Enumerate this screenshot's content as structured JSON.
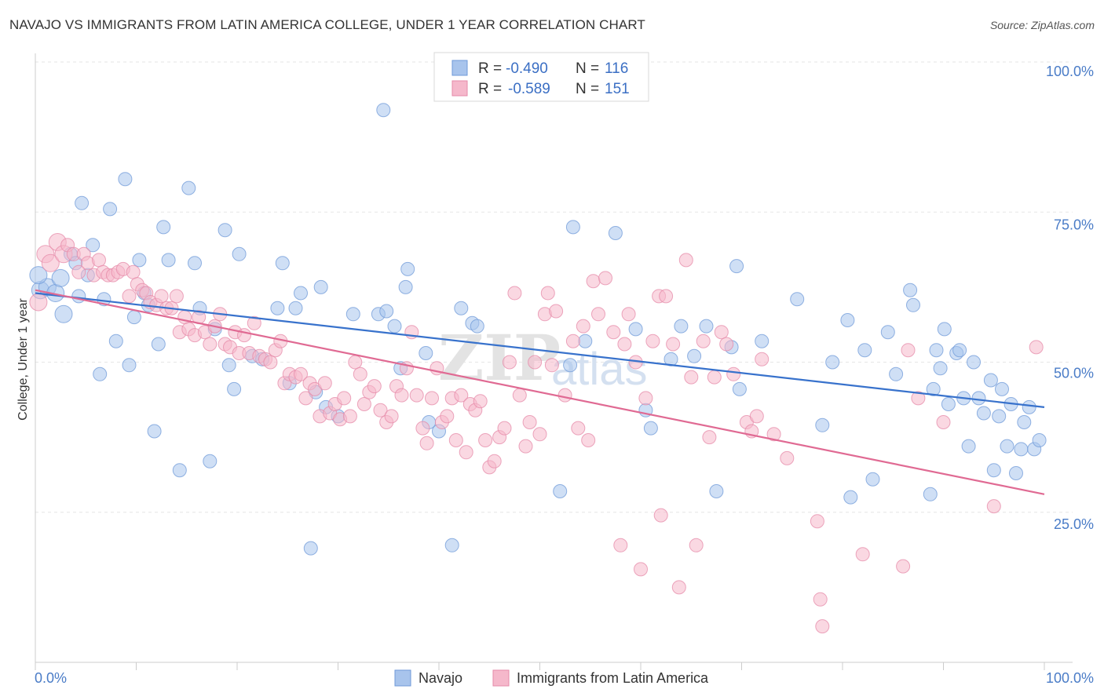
{
  "title": "NAVAJO VS IMMIGRANTS FROM LATIN AMERICA COLLEGE, UNDER 1 YEAR CORRELATION CHART",
  "source": "Source: ZipAtlas.com",
  "watermark": {
    "zip": "ZIP",
    "atlas": "atlas"
  },
  "legend": {
    "r_label": "R =",
    "n_label": "N =",
    "series": [
      {
        "r": "-0.490",
        "n": "116",
        "color": "#a8c4ec",
        "stroke": "#6f9ad8"
      },
      {
        "r": "-0.589",
        "n": "151",
        "color": "#f5b8cb",
        "stroke": "#e58aa8"
      }
    ]
  },
  "chart_data": {
    "type": "scatter",
    "title": "NAVAJO VS IMMIGRANTS FROM LATIN AMERICA COLLEGE, UNDER 1 YEAR CORRELATION CHART",
    "xlabel": "",
    "ylabel": "College, Under 1 year",
    "xlim": [
      0,
      100
    ],
    "ylim": [
      0,
      100
    ],
    "x_tick_labels": [
      "0.0%",
      "100.0%"
    ],
    "y_tick_labels": [
      {
        "value": 100,
        "label": "100.0%"
      },
      {
        "value": 75,
        "label": "75.0%"
      },
      {
        "value": 50,
        "label": "50.0%"
      },
      {
        "value": 25,
        "label": "25.0%"
      }
    ],
    "grid": true,
    "legend_position": "top-center",
    "series": [
      {
        "name": "Navajo",
        "color": "#a8c4ec",
        "stroke": "#6f9ad8",
        "line_color": "#3872cc",
        "trend": {
          "x": [
            0,
            100
          ],
          "y": [
            61.5,
            42.5
          ]
        },
        "points": [
          [
            0.5,
            62
          ],
          [
            1.2,
            62.5
          ],
          [
            2,
            61.5
          ],
          [
            2.5,
            64
          ],
          [
            2.8,
            58
          ],
          [
            3.5,
            68
          ],
          [
            4,
            66.5
          ],
          [
            4.3,
            61
          ],
          [
            4.6,
            76.5
          ],
          [
            5.2,
            64.5
          ],
          [
            5.7,
            69.5
          ],
          [
            6.4,
            48
          ],
          [
            6.8,
            60.5
          ],
          [
            7.4,
            75.5
          ],
          [
            8,
            53.5
          ],
          [
            8.9,
            80.5
          ],
          [
            9.3,
            49.5
          ],
          [
            9.8,
            57.5
          ],
          [
            10.3,
            67
          ],
          [
            10.8,
            61.5
          ],
          [
            11.2,
            59.5
          ],
          [
            11.8,
            38.5
          ],
          [
            12.2,
            53
          ],
          [
            12.7,
            72.5
          ],
          [
            13.2,
            67
          ],
          [
            14.3,
            32
          ],
          [
            15.2,
            79
          ],
          [
            15.8,
            66.5
          ],
          [
            16.3,
            59
          ],
          [
            17.3,
            33.5
          ],
          [
            17.8,
            55.5
          ],
          [
            18.8,
            72
          ],
          [
            19.2,
            49.5
          ],
          [
            19.7,
            45.5
          ],
          [
            20.2,
            68
          ],
          [
            21.5,
            51
          ],
          [
            22.5,
            50.5
          ],
          [
            24,
            59
          ],
          [
            24.5,
            66.5
          ],
          [
            25.2,
            46.5
          ],
          [
            25.8,
            59
          ],
          [
            26.3,
            61.5
          ],
          [
            27.3,
            19
          ],
          [
            27.8,
            45
          ],
          [
            28.3,
            62.5
          ],
          [
            28.8,
            42.5
          ],
          [
            30,
            41
          ],
          [
            31.5,
            58
          ],
          [
            34,
            58
          ],
          [
            34.5,
            92
          ],
          [
            34.8,
            58.5
          ],
          [
            35.6,
            56
          ],
          [
            36.2,
            49
          ],
          [
            36.7,
            62.5
          ],
          [
            36.9,
            65.5
          ],
          [
            38.7,
            51.5
          ],
          [
            39,
            40
          ],
          [
            40,
            38.5
          ],
          [
            41.3,
            19.5
          ],
          [
            42.2,
            59
          ],
          [
            43.3,
            56.5
          ],
          [
            43.8,
            56
          ],
          [
            52,
            28.5
          ],
          [
            53,
            49.5
          ],
          [
            53.3,
            72.5
          ],
          [
            54.5,
            53.5
          ],
          [
            57.5,
            71.5
          ],
          [
            59.5,
            55.5
          ],
          [
            60.5,
            42
          ],
          [
            61,
            39
          ],
          [
            63,
            50.5
          ],
          [
            64,
            56
          ],
          [
            65.3,
            51
          ],
          [
            66.5,
            56
          ],
          [
            67.5,
            28.5
          ],
          [
            69,
            52.5
          ],
          [
            69.8,
            45.5
          ],
          [
            69.5,
            66
          ],
          [
            72,
            53.5
          ],
          [
            75.5,
            60.5
          ],
          [
            78,
            39.5
          ],
          [
            79,
            50
          ],
          [
            80.5,
            57
          ],
          [
            80.8,
            27.5
          ],
          [
            82.2,
            52
          ],
          [
            83,
            30.5
          ],
          [
            84.5,
            55
          ],
          [
            85.3,
            48
          ],
          [
            86.7,
            62
          ],
          [
            87,
            59.5
          ],
          [
            88.7,
            28
          ],
          [
            89,
            45.5
          ],
          [
            89.3,
            52
          ],
          [
            89.7,
            49
          ],
          [
            90.1,
            55.5
          ],
          [
            90.5,
            43
          ],
          [
            91.3,
            51.5
          ],
          [
            91.6,
            52
          ],
          [
            92,
            44
          ],
          [
            92.5,
            36
          ],
          [
            93,
            50
          ],
          [
            93.5,
            44
          ],
          [
            94,
            41.5
          ],
          [
            94.7,
            47
          ],
          [
            95,
            32
          ],
          [
            95.5,
            41
          ],
          [
            95.8,
            45.5
          ],
          [
            96.3,
            36
          ],
          [
            96.7,
            43
          ],
          [
            97.2,
            31.5
          ],
          [
            97.7,
            35.5
          ],
          [
            98,
            40
          ],
          [
            98.5,
            42.5
          ],
          [
            99,
            35.5
          ],
          [
            99.5,
            37
          ],
          [
            0.3,
            64.5
          ]
        ]
      },
      {
        "name": "Immigrants from Latin America",
        "color": "#f5b8cb",
        "stroke": "#e58aa8",
        "line_color": "#e06a93",
        "trend": {
          "x": [
            0,
            100
          ],
          "y": [
            62,
            28
          ]
        },
        "points": [
          [
            0.3,
            60
          ],
          [
            1,
            68
          ],
          [
            1.5,
            66.5
          ],
          [
            2.2,
            70
          ],
          [
            2.8,
            68
          ],
          [
            3.2,
            69.5
          ],
          [
            3.8,
            68
          ],
          [
            4.3,
            65
          ],
          [
            4.8,
            68
          ],
          [
            5.2,
            66.5
          ],
          [
            5.8,
            64.5
          ],
          [
            6.3,
            67
          ],
          [
            6.7,
            65
          ],
          [
            7.2,
            64.5
          ],
          [
            7.7,
            64.5
          ],
          [
            8.2,
            65
          ],
          [
            8.7,
            65.5
          ],
          [
            9.3,
            61
          ],
          [
            9.7,
            65
          ],
          [
            10.1,
            63
          ],
          [
            10.6,
            62
          ],
          [
            11,
            61.5
          ],
          [
            11.4,
            60
          ],
          [
            12,
            59.5
          ],
          [
            12.5,
            61
          ],
          [
            13,
            59
          ],
          [
            13.5,
            59
          ],
          [
            14,
            61
          ],
          [
            14.3,
            55
          ],
          [
            14.8,
            57.5
          ],
          [
            15.2,
            55.5
          ],
          [
            15.8,
            54.5
          ],
          [
            16.2,
            57.5
          ],
          [
            16.8,
            55
          ],
          [
            17.3,
            53
          ],
          [
            17.8,
            56
          ],
          [
            18.3,
            58
          ],
          [
            18.8,
            53
          ],
          [
            19.3,
            52.5
          ],
          [
            19.8,
            55
          ],
          [
            20.2,
            51.5
          ],
          [
            20.7,
            54.5
          ],
          [
            21.2,
            51.5
          ],
          [
            21.7,
            56.5
          ],
          [
            22.2,
            51
          ],
          [
            22.8,
            50.5
          ],
          [
            23.3,
            50
          ],
          [
            23.8,
            52
          ],
          [
            24.3,
            53.5
          ],
          [
            24.7,
            46.5
          ],
          [
            25.2,
            48
          ],
          [
            25.8,
            47.5
          ],
          [
            26.3,
            48
          ],
          [
            26.8,
            44
          ],
          [
            27.2,
            46.5
          ],
          [
            27.7,
            45.5
          ],
          [
            28.2,
            41
          ],
          [
            28.7,
            46.5
          ],
          [
            29.2,
            41.5
          ],
          [
            29.7,
            43
          ],
          [
            30.2,
            40.5
          ],
          [
            30.6,
            44
          ],
          [
            31.2,
            41
          ],
          [
            31.7,
            50
          ],
          [
            32.2,
            48
          ],
          [
            32.6,
            43
          ],
          [
            33.1,
            45
          ],
          [
            33.6,
            46
          ],
          [
            34.2,
            42
          ],
          [
            34.8,
            40
          ],
          [
            35.3,
            41
          ],
          [
            35.8,
            46
          ],
          [
            36.3,
            44.5
          ],
          [
            36.8,
            49
          ],
          [
            37.3,
            55
          ],
          [
            37.8,
            44.5
          ],
          [
            38.4,
            39
          ],
          [
            38.8,
            36.5
          ],
          [
            39.3,
            44
          ],
          [
            39.8,
            49
          ],
          [
            40.3,
            40
          ],
          [
            40.8,
            41
          ],
          [
            41.3,
            44
          ],
          [
            41.7,
            37
          ],
          [
            42.2,
            44.5
          ],
          [
            42.7,
            35
          ],
          [
            43.1,
            43
          ],
          [
            43.6,
            42
          ],
          [
            44.1,
            43.5
          ],
          [
            44.6,
            37
          ],
          [
            45,
            32.5
          ],
          [
            45.5,
            33.5
          ],
          [
            46,
            37.5
          ],
          [
            46.5,
            39
          ],
          [
            47,
            50
          ],
          [
            47.5,
            61.5
          ],
          [
            48,
            44.5
          ],
          [
            48.6,
            36
          ],
          [
            49,
            40
          ],
          [
            49.5,
            50
          ],
          [
            50,
            38
          ],
          [
            50.5,
            58
          ],
          [
            50.8,
            61.5
          ],
          [
            51.2,
            49.5
          ],
          [
            51.6,
            58.5
          ],
          [
            52.5,
            44.5
          ],
          [
            53.3,
            53.5
          ],
          [
            53.8,
            39
          ],
          [
            54.3,
            56
          ],
          [
            54.8,
            37
          ],
          [
            55.3,
            63.5
          ],
          [
            55.8,
            58
          ],
          [
            56.5,
            64
          ],
          [
            57.3,
            55
          ],
          [
            58,
            19.5
          ],
          [
            58.4,
            53
          ],
          [
            58.8,
            58
          ],
          [
            59.5,
            50
          ],
          [
            60,
            15.5
          ],
          [
            60.5,
            44
          ],
          [
            61.2,
            53.5
          ],
          [
            61.8,
            61
          ],
          [
            62,
            24.5
          ],
          [
            62.5,
            61
          ],
          [
            63.2,
            53
          ],
          [
            63.8,
            12.5
          ],
          [
            64.5,
            67
          ],
          [
            65,
            47.5
          ],
          [
            65.5,
            19.5
          ],
          [
            66.2,
            53.5
          ],
          [
            66.8,
            37.5
          ],
          [
            67.3,
            47.5
          ],
          [
            68,
            55
          ],
          [
            68.5,
            53
          ],
          [
            69.2,
            48
          ],
          [
            70.5,
            40
          ],
          [
            71,
            38.5
          ],
          [
            71.5,
            41
          ],
          [
            72,
            50.5
          ],
          [
            73.2,
            38
          ],
          [
            74.5,
            34
          ],
          [
            77.5,
            23.5
          ],
          [
            77.8,
            10.5
          ],
          [
            78,
            6
          ],
          [
            82,
            18
          ],
          [
            86,
            16
          ],
          [
            86.5,
            52
          ],
          [
            87.5,
            44
          ],
          [
            90,
            40
          ],
          [
            95,
            26
          ],
          [
            99.2,
            52.5
          ]
        ]
      }
    ]
  }
}
